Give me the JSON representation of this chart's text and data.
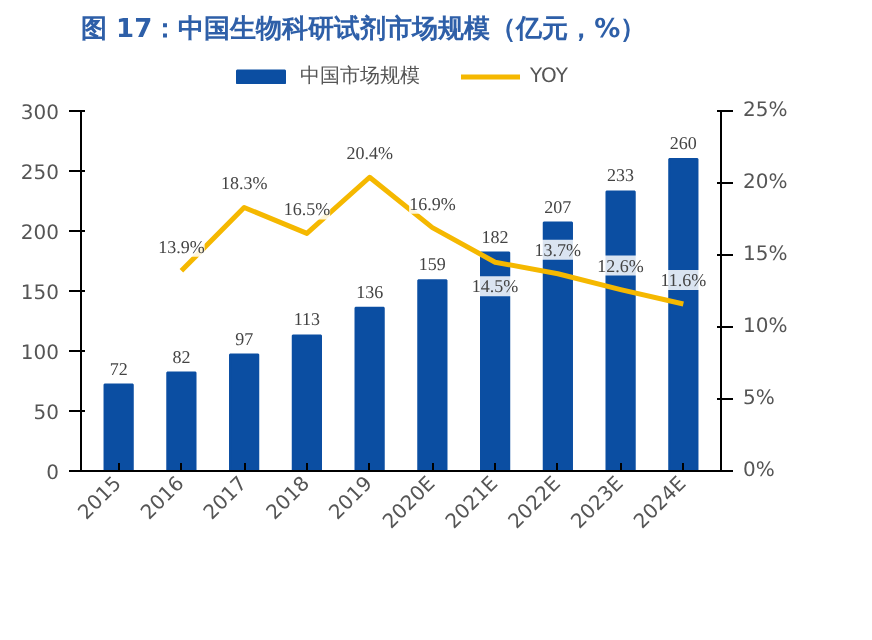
{
  "chart_data": {
    "type": "bar",
    "title": "图 17：中国生物科研试剂市场规模（亿元，%）",
    "categories": [
      "2015",
      "2016",
      "2017",
      "2018",
      "2019",
      "2020E",
      "2021E",
      "2022E",
      "2023E",
      "2024E"
    ],
    "series": [
      {
        "name": "中国市场规模",
        "color": "#0b4ea2",
        "values": [
          72,
          82,
          97,
          113,
          136,
          159,
          182,
          207,
          233,
          260
        ],
        "value_labels": [
          "72",
          "82",
          "97",
          "113",
          "136",
          "159",
          "182",
          "207",
          "233",
          "260"
        ]
      },
      {
        "name": "YOY",
        "type": "line",
        "axis": "y2",
        "color": "#f5b800",
        "values": [
          null,
          13.9,
          18.3,
          16.5,
          20.4,
          16.9,
          14.5,
          13.7,
          12.6,
          11.6
        ],
        "value_labels": [
          null,
          "13.9%",
          "18.3%",
          "16.5%",
          "20.4%",
          "16.9%",
          "14.5%",
          "13.7%",
          "12.6%",
          "11.6%"
        ]
      }
    ],
    "ylim": [
      0,
      300
    ],
    "yticks": [
      0,
      50,
      100,
      150,
      200,
      250,
      300
    ],
    "y2lim": [
      0,
      25
    ],
    "y2ticks": [
      {
        "value": 0,
        "label": "0%"
      },
      {
        "value": 5,
        "label": "5%"
      },
      {
        "value": 10,
        "label": "10%"
      },
      {
        "value": 15,
        "label": "15%"
      },
      {
        "value": 20,
        "label": "20%"
      },
      {
        "value": 25,
        "label": "25%"
      }
    ],
    "grid": false,
    "legend": "top"
  }
}
